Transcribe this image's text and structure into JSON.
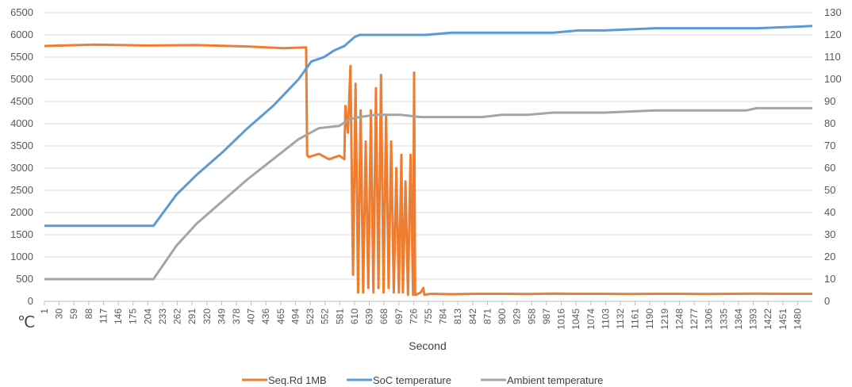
{
  "chart_data": {
    "type": "line",
    "xlabel": "Second",
    "y_unit_label": "℃",
    "ylim_left": [
      0,
      6500
    ],
    "ylim_right": [
      0,
      130
    ],
    "yticks_left": [
      0,
      500,
      1000,
      1500,
      2000,
      2500,
      3000,
      3500,
      4000,
      4500,
      5000,
      5500,
      6000,
      6500
    ],
    "yticks_right": [
      0,
      10,
      20,
      30,
      40,
      50,
      60,
      70,
      80,
      90,
      100,
      110,
      120,
      130
    ],
    "xlim": [
      1,
      1509
    ],
    "xticks": [
      "1",
      "30",
      "59",
      "88",
      "117",
      "146",
      "175",
      "204",
      "233",
      "262",
      "291",
      "320",
      "349",
      "378",
      "407",
      "436",
      "465",
      "494",
      "523",
      "552",
      "581",
      "610",
      "639",
      "668",
      "697",
      "726",
      "755",
      "784",
      "813",
      "842",
      "871",
      "900",
      "929",
      "958",
      "987",
      "1016",
      "1045",
      "1074",
      "1103",
      "1132",
      "1161",
      "1190",
      "1219",
      "1248",
      "1277",
      "1306",
      "1335",
      "1364",
      "1393",
      "1422",
      "1451",
      "1480"
    ],
    "grid": "horizontal",
    "legend_position": "bottom",
    "colors": {
      "seq": "#ED7D31",
      "soc": "#5B9BD5",
      "amb": "#A5A5A5",
      "grid": "#D9D9D9"
    },
    "series": [
      {
        "name": "Seq.Rd 1MB",
        "axis": "left",
        "color": "#ED7D31",
        "x": [
          1,
          100,
          200,
          300,
          400,
          470,
          515,
          517,
          520,
          540,
          560,
          580,
          590,
          592,
          597,
          602,
          607,
          612,
          617,
          622,
          627,
          632,
          637,
          642,
          647,
          652,
          657,
          662,
          667,
          672,
          677,
          682,
          687,
          692,
          697,
          702,
          705,
          710,
          715,
          720,
          725,
          727,
          729,
          731,
          740,
          745,
          747,
          760,
          800,
          850,
          900,
          950,
          1000,
          1050,
          1100,
          1150,
          1200,
          1250,
          1300,
          1350,
          1400,
          1450,
          1500,
          1509
        ],
        "y": [
          5750,
          5780,
          5760,
          5770,
          5740,
          5700,
          5720,
          3300,
          3250,
          3320,
          3200,
          3280,
          3200,
          4400,
          3800,
          5300,
          600,
          4900,
          200,
          4300,
          200,
          3600,
          300,
          4300,
          200,
          4800,
          300,
          5100,
          200,
          4200,
          300,
          3600,
          200,
          3000,
          200,
          3300,
          200,
          2700,
          150,
          3300,
          150,
          5150,
          150,
          150,
          200,
          300,
          150,
          170,
          160,
          170,
          170,
          165,
          175,
          170,
          170,
          165,
          170,
          170,
          165,
          170,
          175,
          170,
          170,
          170
        ]
      },
      {
        "name": "SoC temperature",
        "axis": "right",
        "color": "#5B9BD5",
        "x": [
          1,
          100,
          200,
          215,
          260,
          300,
          350,
          400,
          450,
          500,
          525,
          550,
          570,
          590,
          610,
          620,
          650,
          700,
          750,
          800,
          850,
          900,
          1000,
          1050,
          1100,
          1200,
          1300,
          1400,
          1509
        ],
        "y": [
          34,
          34,
          34,
          34,
          48,
          57,
          67,
          78,
          88,
          100,
          108,
          110,
          113,
          115,
          119,
          120,
          120,
          120,
          120,
          121,
          121,
          121,
          121,
          122,
          122,
          123,
          123,
          123,
          124
        ]
      },
      {
        "name": "Ambient temperature",
        "axis": "right",
        "color": "#A5A5A5",
        "x": [
          1,
          100,
          200,
          215,
          260,
          300,
          350,
          400,
          450,
          500,
          540,
          580,
          600,
          620,
          650,
          700,
          740,
          800,
          860,
          900,
          950,
          1000,
          1100,
          1200,
          1300,
          1380,
          1400,
          1509
        ],
        "y": [
          10,
          10,
          10,
          10,
          25,
          35,
          45,
          55,
          64,
          73,
          78,
          79,
          82,
          83,
          84,
          84,
          83,
          83,
          83,
          84,
          84,
          85,
          85,
          86,
          86,
          86,
          87,
          87
        ]
      }
    ]
  }
}
